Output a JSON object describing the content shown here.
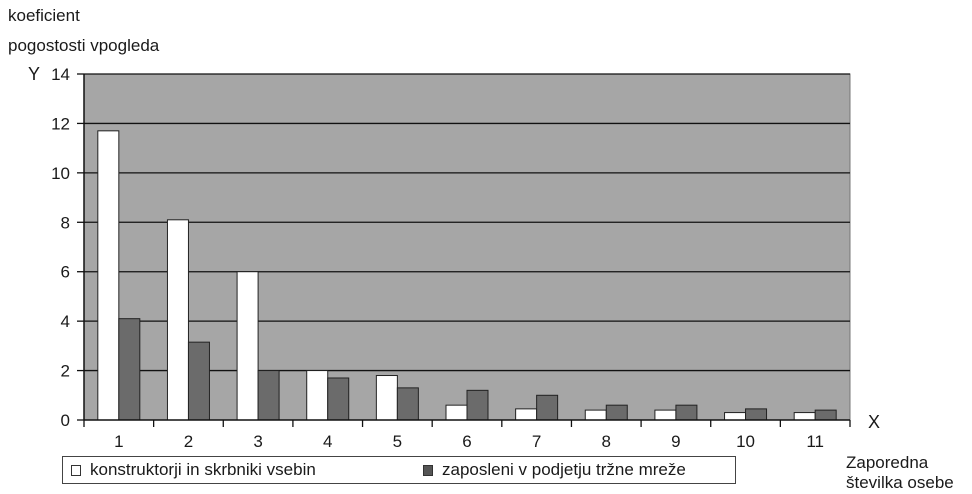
{
  "chart_data": {
    "type": "bar",
    "ylabel_lines": [
      "koeficient",
      "pogostosti vpogleda"
    ],
    "y_symbol": "Y",
    "x_symbol": "X",
    "xlabel_lines": [
      "Zaporedna",
      "številka osebe"
    ],
    "categories": [
      "1",
      "2",
      "3",
      "4",
      "5",
      "6",
      "7",
      "8",
      "9",
      "10",
      "11"
    ],
    "ylim": [
      0,
      14
    ],
    "yticks": [
      "0",
      "2",
      "4",
      "6",
      "8",
      "10",
      "12",
      "14"
    ],
    "grid": true,
    "legend_position": "bottom",
    "series": [
      {
        "name": "konstruktorji in skrbniki vsebin",
        "color": "#ffffff",
        "values": [
          11.7,
          8.1,
          6.0,
          2.0,
          1.8,
          0.6,
          0.45,
          0.4,
          0.4,
          0.3,
          0.3
        ]
      },
      {
        "name": "zaposleni v podjetju tržne mreže",
        "color": "#6b6b6b",
        "values": [
          4.1,
          3.15,
          2.0,
          1.7,
          1.3,
          1.2,
          1.0,
          0.6,
          0.6,
          0.45,
          0.4
        ]
      }
    ],
    "plot_background": "#a6a6a6"
  }
}
